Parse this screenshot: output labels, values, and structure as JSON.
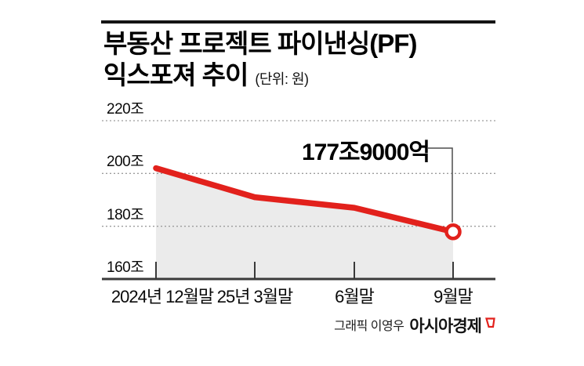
{
  "header": {
    "title_line1": "부동산 프로젝트 파이낸싱(PF)",
    "title_line2": "익스포져 추이",
    "unit_note": "(단위: 원)"
  },
  "chart_data": {
    "type": "line",
    "title": "부동산 프로젝트 파이낸싱(PF) 익스포져 추이",
    "unit_label": "(단위: 원)",
    "categories": [
      "2024년 12월말",
      "25년 3월말",
      "6월말",
      "9월말"
    ],
    "series": [
      {
        "name": "부동산 PF 익스포져",
        "values": [
          202,
          191,
          187,
          177.9
        ]
      }
    ],
    "y_ticks": [
      {
        "label": "220조",
        "value": 220
      },
      {
        "label": "200조",
        "value": 200
      },
      {
        "label": "180조",
        "value": 180
      },
      {
        "label": "160조",
        "value": 160
      }
    ],
    "ylim": [
      160,
      220
    ],
    "grid": "horizontal-dotted",
    "legend": "none",
    "annotation": {
      "text": "177조9000억",
      "point_index": 3,
      "value": 177.9
    },
    "colors": {
      "line": "#e2211c",
      "marker_ring": "#e2211c",
      "marker_fill": "#ffffff",
      "area_fill": "#ebebeb",
      "gridline": "#9c9c9c",
      "axis": "#3a3a3a",
      "leader_line": "#4d4d4d"
    }
  },
  "footer": {
    "credit_prefix": "그래픽 이영우",
    "brand": "아시아경제",
    "brand_logo": "asiae-flag-icon",
    "brand_color": "#e2211c"
  }
}
